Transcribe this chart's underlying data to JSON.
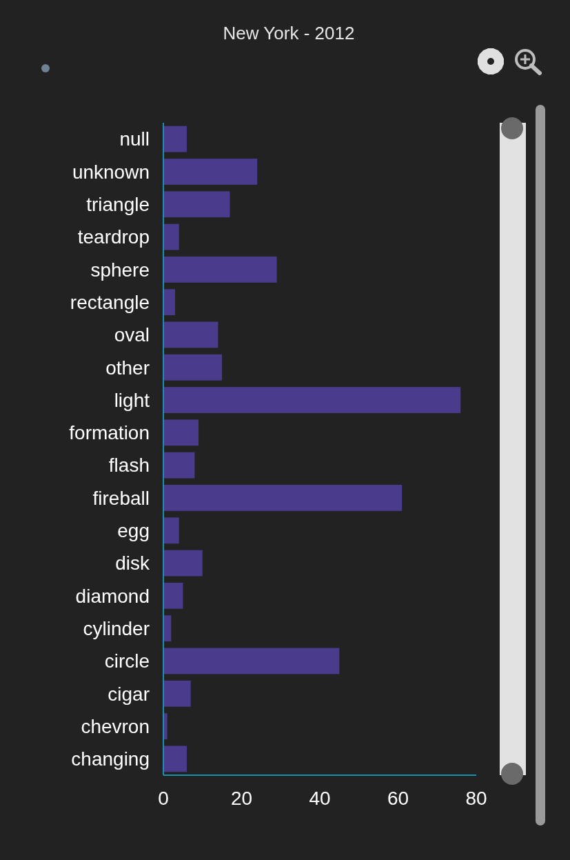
{
  "chart_data": {
    "type": "bar",
    "title": "New York - 2012",
    "orientation": "horizontal",
    "categories": [
      "null",
      "unknown",
      "triangle",
      "teardrop",
      "sphere",
      "rectangle",
      "oval",
      "other",
      "light",
      "formation",
      "flash",
      "fireball",
      "egg",
      "disk",
      "diamond",
      "cylinder",
      "circle",
      "cigar",
      "chevron",
      "changing"
    ],
    "values": [
      6,
      24,
      17,
      4,
      29,
      3,
      14,
      15,
      76,
      9,
      8,
      61,
      4,
      10,
      5,
      2,
      45,
      7,
      1,
      6
    ],
    "color": "#4a3b8c",
    "xlim": [
      0,
      80
    ],
    "xticks": [
      0,
      20,
      40,
      60,
      80
    ],
    "grid": false
  }
}
